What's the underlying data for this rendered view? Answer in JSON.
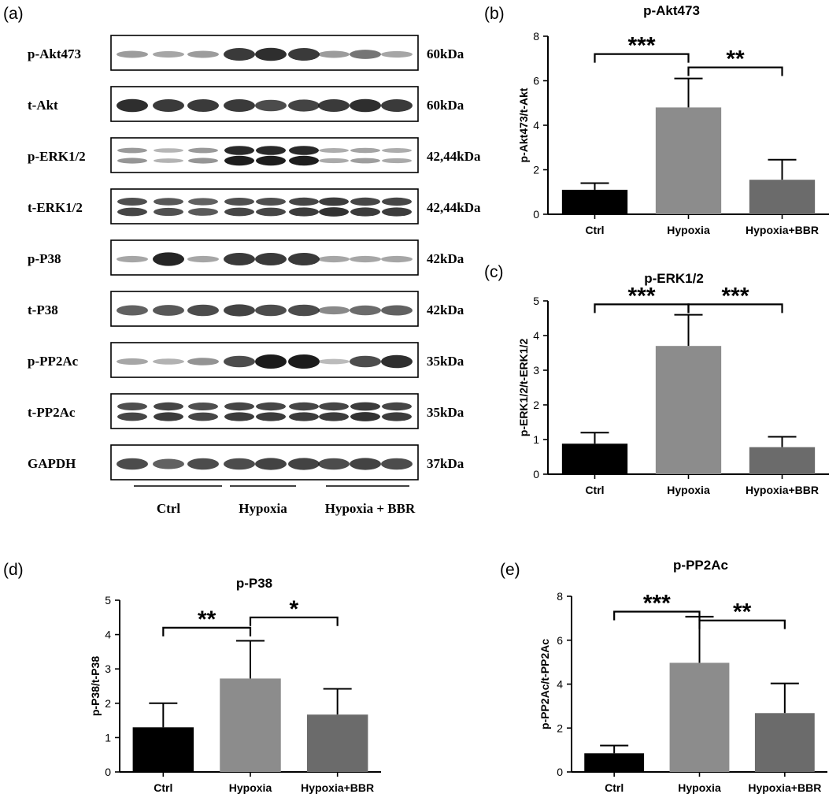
{
  "blot": {
    "panel_letter": "(a)",
    "rows": [
      {
        "label": "p-Akt473",
        "size": "60kDa",
        "intensities": [
          0.35,
          0.3,
          0.35,
          0.85,
          0.9,
          0.85,
          0.35,
          0.55,
          0.3
        ]
      },
      {
        "label": "t-Akt",
        "size": "60kDa",
        "intensities": [
          0.9,
          0.85,
          0.85,
          0.85,
          0.75,
          0.8,
          0.85,
          0.9,
          0.85
        ]
      },
      {
        "label": "p-ERK1/2",
        "size": "42,44kDa",
        "intensities": [
          0.35,
          0.2,
          0.35,
          0.95,
          0.95,
          0.95,
          0.25,
          0.3,
          0.25
        ],
        "doublet": true
      },
      {
        "label": "t-ERK1/2",
        "size": "42,44kDa",
        "intensities": [
          0.75,
          0.7,
          0.65,
          0.75,
          0.75,
          0.8,
          0.85,
          0.8,
          0.8
        ],
        "doublet": true
      },
      {
        "label": "p-P38",
        "size": "42kDa",
        "intensities": [
          0.3,
          0.95,
          0.3,
          0.85,
          0.85,
          0.85,
          0.3,
          0.3,
          0.3
        ]
      },
      {
        "label": "t-P38",
        "size": "42kDa",
        "intensities": [
          0.65,
          0.7,
          0.75,
          0.8,
          0.75,
          0.75,
          0.45,
          0.6,
          0.65
        ]
      },
      {
        "label": "p-PP2Ac",
        "size": "35kDa",
        "intensities": [
          0.3,
          0.25,
          0.4,
          0.75,
          1.0,
          1.0,
          0.2,
          0.75,
          0.9
        ]
      },
      {
        "label": "t-PP2Ac",
        "size": "35kDa",
        "intensities": [
          0.75,
          0.8,
          0.75,
          0.8,
          0.8,
          0.8,
          0.8,
          0.85,
          0.8
        ],
        "doublet": true
      },
      {
        "label": "GAPDH",
        "size": "37kDa",
        "intensities": [
          0.75,
          0.65,
          0.75,
          0.75,
          0.8,
          0.8,
          0.75,
          0.8,
          0.75
        ]
      }
    ],
    "groups": [
      "Ctrl",
      "Hypoxia",
      "Hypoxia + BBR"
    ]
  },
  "chart_data": [
    {
      "panel": "(b)",
      "type": "bar",
      "title": "p-Akt473",
      "ylabel": "p-Akt473/t-Akt",
      "categories": [
        "Ctrl",
        "Hypoxia",
        "Hypoxia+BBR"
      ],
      "values": [
        1.1,
        4.8,
        1.55
      ],
      "errors": [
        0.3,
        1.3,
        0.9
      ],
      "ylim": [
        0,
        8
      ],
      "yticks": [
        0,
        2,
        4,
        6,
        8
      ],
      "significance": [
        {
          "from": 0,
          "to": 1,
          "label": "***",
          "y": 7.2
        },
        {
          "from": 1,
          "to": 2,
          "label": "**",
          "y": 6.6
        }
      ]
    },
    {
      "panel": "(c)",
      "type": "bar",
      "title": "p-ERK1/2",
      "ylabel": "p-ERK1/2/t-ERK1/2",
      "categories": [
        "Ctrl",
        "Hypoxia",
        "Hypoxia+BBR"
      ],
      "values": [
        0.88,
        3.7,
        0.78
      ],
      "errors": [
        0.32,
        0.9,
        0.3
      ],
      "ylim": [
        0,
        5
      ],
      "yticks": [
        0,
        1,
        2,
        3,
        4,
        5
      ],
      "significance": [
        {
          "from": 0,
          "to": 1,
          "label": "***",
          "y": 4.9
        },
        {
          "from": 1,
          "to": 2,
          "label": "***",
          "y": 4.9
        }
      ]
    },
    {
      "panel": "(d)",
      "type": "bar",
      "title": "p-P38",
      "ylabel": "p-P38/t-P38",
      "categories": [
        "Ctrl",
        "Hypoxia",
        "Hypoxia+BBR"
      ],
      "values": [
        1.3,
        2.72,
        1.67
      ],
      "errors": [
        0.7,
        1.1,
        0.75
      ],
      "ylim": [
        0,
        5
      ],
      "yticks": [
        0,
        1,
        2,
        3,
        4,
        5
      ],
      "significance": [
        {
          "from": 0,
          "to": 1,
          "label": "**",
          "y": 4.2
        },
        {
          "from": 1,
          "to": 2,
          "label": "*",
          "y": 4.5
        }
      ]
    },
    {
      "panel": "(e)",
      "type": "bar",
      "title": "p-PP2Ac",
      "ylabel": "p-PP2Ac/t-PP2Ac",
      "categories": [
        "Ctrl",
        "Hypoxia",
        "Hypoxia+BBR"
      ],
      "values": [
        0.85,
        4.97,
        2.68
      ],
      "errors": [
        0.35,
        2.1,
        1.35
      ],
      "ylim": [
        0,
        8
      ],
      "yticks": [
        0,
        2,
        4,
        6,
        8
      ],
      "significance": [
        {
          "from": 0,
          "to": 1,
          "label": "***",
          "y": 7.3
        },
        {
          "from": 1,
          "to": 2,
          "label": "**",
          "y": 6.9
        }
      ]
    }
  ],
  "colors": {
    "bars": [
      "#000000",
      "#8c8c8c",
      "#6b6b6b"
    ],
    "axis": "#000000",
    "band": "#141414"
  }
}
